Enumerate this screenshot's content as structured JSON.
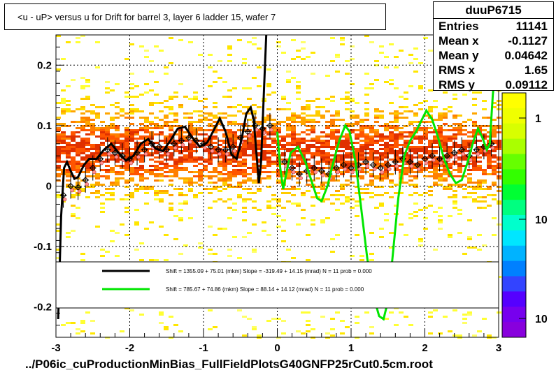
{
  "title": "<u - uP>       versus   u for Drift for barrel 3, layer 6 ladder 15, wafer 7",
  "footer": "../P06ic_cuProductionMinBias_FullFieldPlotsG40GNFP25rCut0.5cm.root",
  "stats": {
    "name": "duuP6715",
    "rows": [
      {
        "label": "Entries",
        "value": "11141"
      },
      {
        "label": "Mean x",
        "value": "-0.1127"
      },
      {
        "label": "Mean y",
        "value": "0.04642"
      },
      {
        "label": "RMS x",
        "value": "1.65"
      },
      {
        "label": "RMS y",
        "value": "0.09112"
      }
    ]
  },
  "colors": {
    "black_fit": "#000000",
    "green_fit": "#00e600",
    "grid": "#000000",
    "marker": "#ff9090"
  },
  "chart_data": {
    "type": "scatter",
    "xlim": [
      -3,
      3
    ],
    "ylim": [
      -0.25,
      0.25
    ],
    "x_ticks": [
      "-3",
      "-2",
      "-1",
      "0",
      "1",
      "2",
      "3"
    ],
    "y_ticks": [
      "-0.2",
      "-0.1",
      "0",
      "0.1",
      "0.2"
    ],
    "grid": true,
    "legend": {
      "position": "lower-center",
      "entries": [
        {
          "color": "black",
          "text": "Shift =   1355.09 + 75.01 (mkm) Slope =   -319.49 + 14.15 (mrad)  N = 11 prob = 0.000"
        },
        {
          "color": "green",
          "text": "Shift =    785.67 + 74.86 (mkm) Slope =     88.14 + 14.12 (mrad)  N = 11 prob = 0.000"
        }
      ]
    },
    "colorbar": {
      "labels": [
        "1",
        "10",
        "10"
      ]
    },
    "profile_points": [
      {
        "x": -2.9,
        "y": -0.015
      },
      {
        "x": -2.8,
        "y": 0.0
      },
      {
        "x": -2.7,
        "y": -0.002
      },
      {
        "x": -2.6,
        "y": 0.01
      },
      {
        "x": -2.5,
        "y": 0.03
      },
      {
        "x": -2.4,
        "y": 0.045
      },
      {
        "x": -2.3,
        "y": 0.06
      },
      {
        "x": -2.2,
        "y": 0.055
      },
      {
        "x": -2.1,
        "y": 0.05
      },
      {
        "x": -2.0,
        "y": 0.045
      },
      {
        "x": -1.9,
        "y": 0.055
      },
      {
        "x": -1.8,
        "y": 0.06
      },
      {
        "x": -1.7,
        "y": 0.07
      },
      {
        "x": -1.6,
        "y": 0.065
      },
      {
        "x": -1.5,
        "y": 0.06
      },
      {
        "x": -1.4,
        "y": 0.07
      },
      {
        "x": -1.3,
        "y": 0.075
      },
      {
        "x": -1.2,
        "y": 0.08
      },
      {
        "x": -1.1,
        "y": 0.075
      },
      {
        "x": -1.0,
        "y": 0.07
      },
      {
        "x": -0.9,
        "y": 0.065
      },
      {
        "x": -0.8,
        "y": 0.06
      },
      {
        "x": -0.7,
        "y": 0.06
      },
      {
        "x": -0.6,
        "y": 0.065
      },
      {
        "x": -0.5,
        "y": 0.08
      },
      {
        "x": -0.4,
        "y": 0.09
      },
      {
        "x": -0.3,
        "y": 0.1
      },
      {
        "x": -0.2,
        "y": 0.095
      },
      {
        "x": -0.1,
        "y": 0.1
      },
      {
        "x": 0.1,
        "y": 0.04
      },
      {
        "x": 0.2,
        "y": 0.03
      },
      {
        "x": 0.3,
        "y": 0.02
      },
      {
        "x": 0.4,
        "y": 0.025
      },
      {
        "x": 0.5,
        "y": 0.03
      },
      {
        "x": 0.6,
        "y": 0.025
      },
      {
        "x": 0.7,
        "y": 0.02
      },
      {
        "x": 0.8,
        "y": 0.03
      },
      {
        "x": 0.9,
        "y": 0.035
      },
      {
        "x": 1.0,
        "y": 0.03
      },
      {
        "x": 1.1,
        "y": 0.035
      },
      {
        "x": 1.2,
        "y": 0.04
      },
      {
        "x": 1.3,
        "y": 0.035
      },
      {
        "x": 1.4,
        "y": 0.03
      },
      {
        "x": 1.5,
        "y": 0.035
      },
      {
        "x": 1.6,
        "y": 0.04
      },
      {
        "x": 1.7,
        "y": 0.045
      },
      {
        "x": 1.8,
        "y": 0.04
      },
      {
        "x": 1.9,
        "y": 0.035
      },
      {
        "x": 2.0,
        "y": 0.045
      },
      {
        "x": 2.1,
        "y": 0.05
      },
      {
        "x": 2.2,
        "y": 0.045
      },
      {
        "x": 2.3,
        "y": 0.05
      },
      {
        "x": 2.4,
        "y": 0.055
      },
      {
        "x": 2.5,
        "y": 0.06
      },
      {
        "x": 2.6,
        "y": 0.05
      },
      {
        "x": 2.7,
        "y": 0.06
      },
      {
        "x": 2.8,
        "y": 0.065
      },
      {
        "x": 2.9,
        "y": 0.07
      }
    ],
    "black_curve": [
      [
        -2.97,
        -0.22
      ],
      [
        -2.93,
        -0.05
      ],
      [
        -2.89,
        0.03
      ],
      [
        -2.85,
        0.04
      ],
      [
        -2.8,
        0.025
      ],
      [
        -2.75,
        0.012
      ],
      [
        -2.7,
        0.015
      ],
      [
        -2.62,
        0.035
      ],
      [
        -2.55,
        0.045
      ],
      [
        -2.45,
        0.045
      ],
      [
        -2.35,
        0.06
      ],
      [
        -2.25,
        0.07
      ],
      [
        -2.15,
        0.055
      ],
      [
        -2.05,
        0.042
      ],
      [
        -1.95,
        0.05
      ],
      [
        -1.85,
        0.07
      ],
      [
        -1.75,
        0.078
      ],
      [
        -1.65,
        0.062
      ],
      [
        -1.55,
        0.058
      ],
      [
        -1.45,
        0.075
      ],
      [
        -1.35,
        0.095
      ],
      [
        -1.25,
        0.098
      ],
      [
        -1.15,
        0.08
      ],
      [
        -1.05,
        0.065
      ],
      [
        -0.95,
        0.072
      ],
      [
        -0.85,
        0.095
      ],
      [
        -0.78,
        0.112
      ],
      [
        -0.7,
        0.09
      ],
      [
        -0.62,
        0.052
      ],
      [
        -0.55,
        0.045
      ],
      [
        -0.48,
        0.08
      ],
      [
        -0.42,
        0.12
      ],
      [
        -0.36,
        0.13
      ],
      [
        -0.32,
        0.11
      ],
      [
        -0.28,
        0.05
      ],
      [
        -0.25,
        0.005
      ],
      [
        -0.22,
        0.04
      ],
      [
        -0.18,
        0.16
      ],
      [
        -0.15,
        0.25
      ]
    ],
    "green_curve": [
      [
        0.0,
        0.09
      ],
      [
        0.04,
        0.03
      ],
      [
        0.08,
        -0.005
      ],
      [
        0.12,
        0.02
      ],
      [
        0.18,
        0.055
      ],
      [
        0.28,
        0.065
      ],
      [
        0.38,
        0.04
      ],
      [
        0.46,
        0.01
      ],
      [
        0.54,
        -0.02
      ],
      [
        0.6,
        -0.025
      ],
      [
        0.68,
        0.0
      ],
      [
        0.76,
        0.04
      ],
      [
        0.84,
        0.075
      ],
      [
        0.92,
        0.1
      ],
      [
        0.98,
        0.09
      ],
      [
        1.06,
        0.04
      ],
      [
        1.14,
        -0.04
      ],
      [
        1.22,
        -0.12
      ],
      [
        1.3,
        -0.18
      ],
      [
        1.38,
        -0.215
      ],
      [
        1.44,
        -0.22
      ],
      [
        1.5,
        -0.19
      ],
      [
        1.56,
        -0.12
      ],
      [
        1.64,
        -0.02
      ],
      [
        1.72,
        0.05
      ],
      [
        1.8,
        0.075
      ],
      [
        1.88,
        0.09
      ],
      [
        1.96,
        0.11
      ],
      [
        2.02,
        0.125
      ],
      [
        2.1,
        0.11
      ],
      [
        2.18,
        0.08
      ],
      [
        2.26,
        0.045
      ],
      [
        2.34,
        0.02
      ],
      [
        2.42,
        0.005
      ],
      [
        2.5,
        0.01
      ],
      [
        2.58,
        0.04
      ],
      [
        2.66,
        0.075
      ],
      [
        2.72,
        0.095
      ],
      [
        2.78,
        0.08
      ],
      [
        2.84,
        0.06
      ],
      [
        2.88,
        0.07
      ],
      [
        2.92,
        0.15
      ],
      [
        2.95,
        0.19
      ]
    ]
  }
}
